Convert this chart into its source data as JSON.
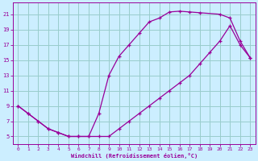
{
  "xlabel": "Windchill (Refroidissement éolien,°C)",
  "bg_color": "#cceeff",
  "line_color": "#990099",
  "grid_color": "#99cccc",
  "xlim": [
    -0.5,
    23.5
  ],
  "ylim": [
    4,
    22.5
  ],
  "xticks": [
    0,
    1,
    2,
    3,
    4,
    5,
    6,
    7,
    8,
    9,
    10,
    11,
    12,
    13,
    14,
    15,
    16,
    17,
    18,
    19,
    20,
    21,
    22,
    23
  ],
  "yticks": [
    5,
    7,
    9,
    11,
    13,
    15,
    17,
    19,
    21
  ],
  "curve1_x": [
    0,
    1,
    2,
    3,
    4,
    5,
    6,
    7,
    8,
    9,
    10,
    11,
    12,
    13,
    14,
    15,
    16,
    17,
    18,
    20,
    21,
    22,
    23
  ],
  "curve1_y": [
    9,
    8,
    7,
    6,
    5.5,
    5,
    5,
    5,
    8,
    13,
    15.5,
    17,
    18.5,
    20,
    20.5,
    21.3,
    21.4,
    21.3,
    21.2,
    21.0,
    20.5,
    17.5,
    15.3
  ],
  "curve2_x": [
    0,
    1,
    2,
    3,
    4,
    5,
    6,
    7,
    8,
    9,
    10,
    11,
    12,
    13,
    14,
    15,
    16,
    17,
    18,
    19,
    20,
    21,
    22,
    23
  ],
  "curve2_y": [
    9,
    8,
    7,
    6,
    5.5,
    5,
    5,
    5,
    5,
    5,
    6,
    7,
    8,
    9,
    10,
    11,
    12,
    13,
    14.5,
    16,
    17.5,
    19.5,
    17,
    15.3
  ]
}
